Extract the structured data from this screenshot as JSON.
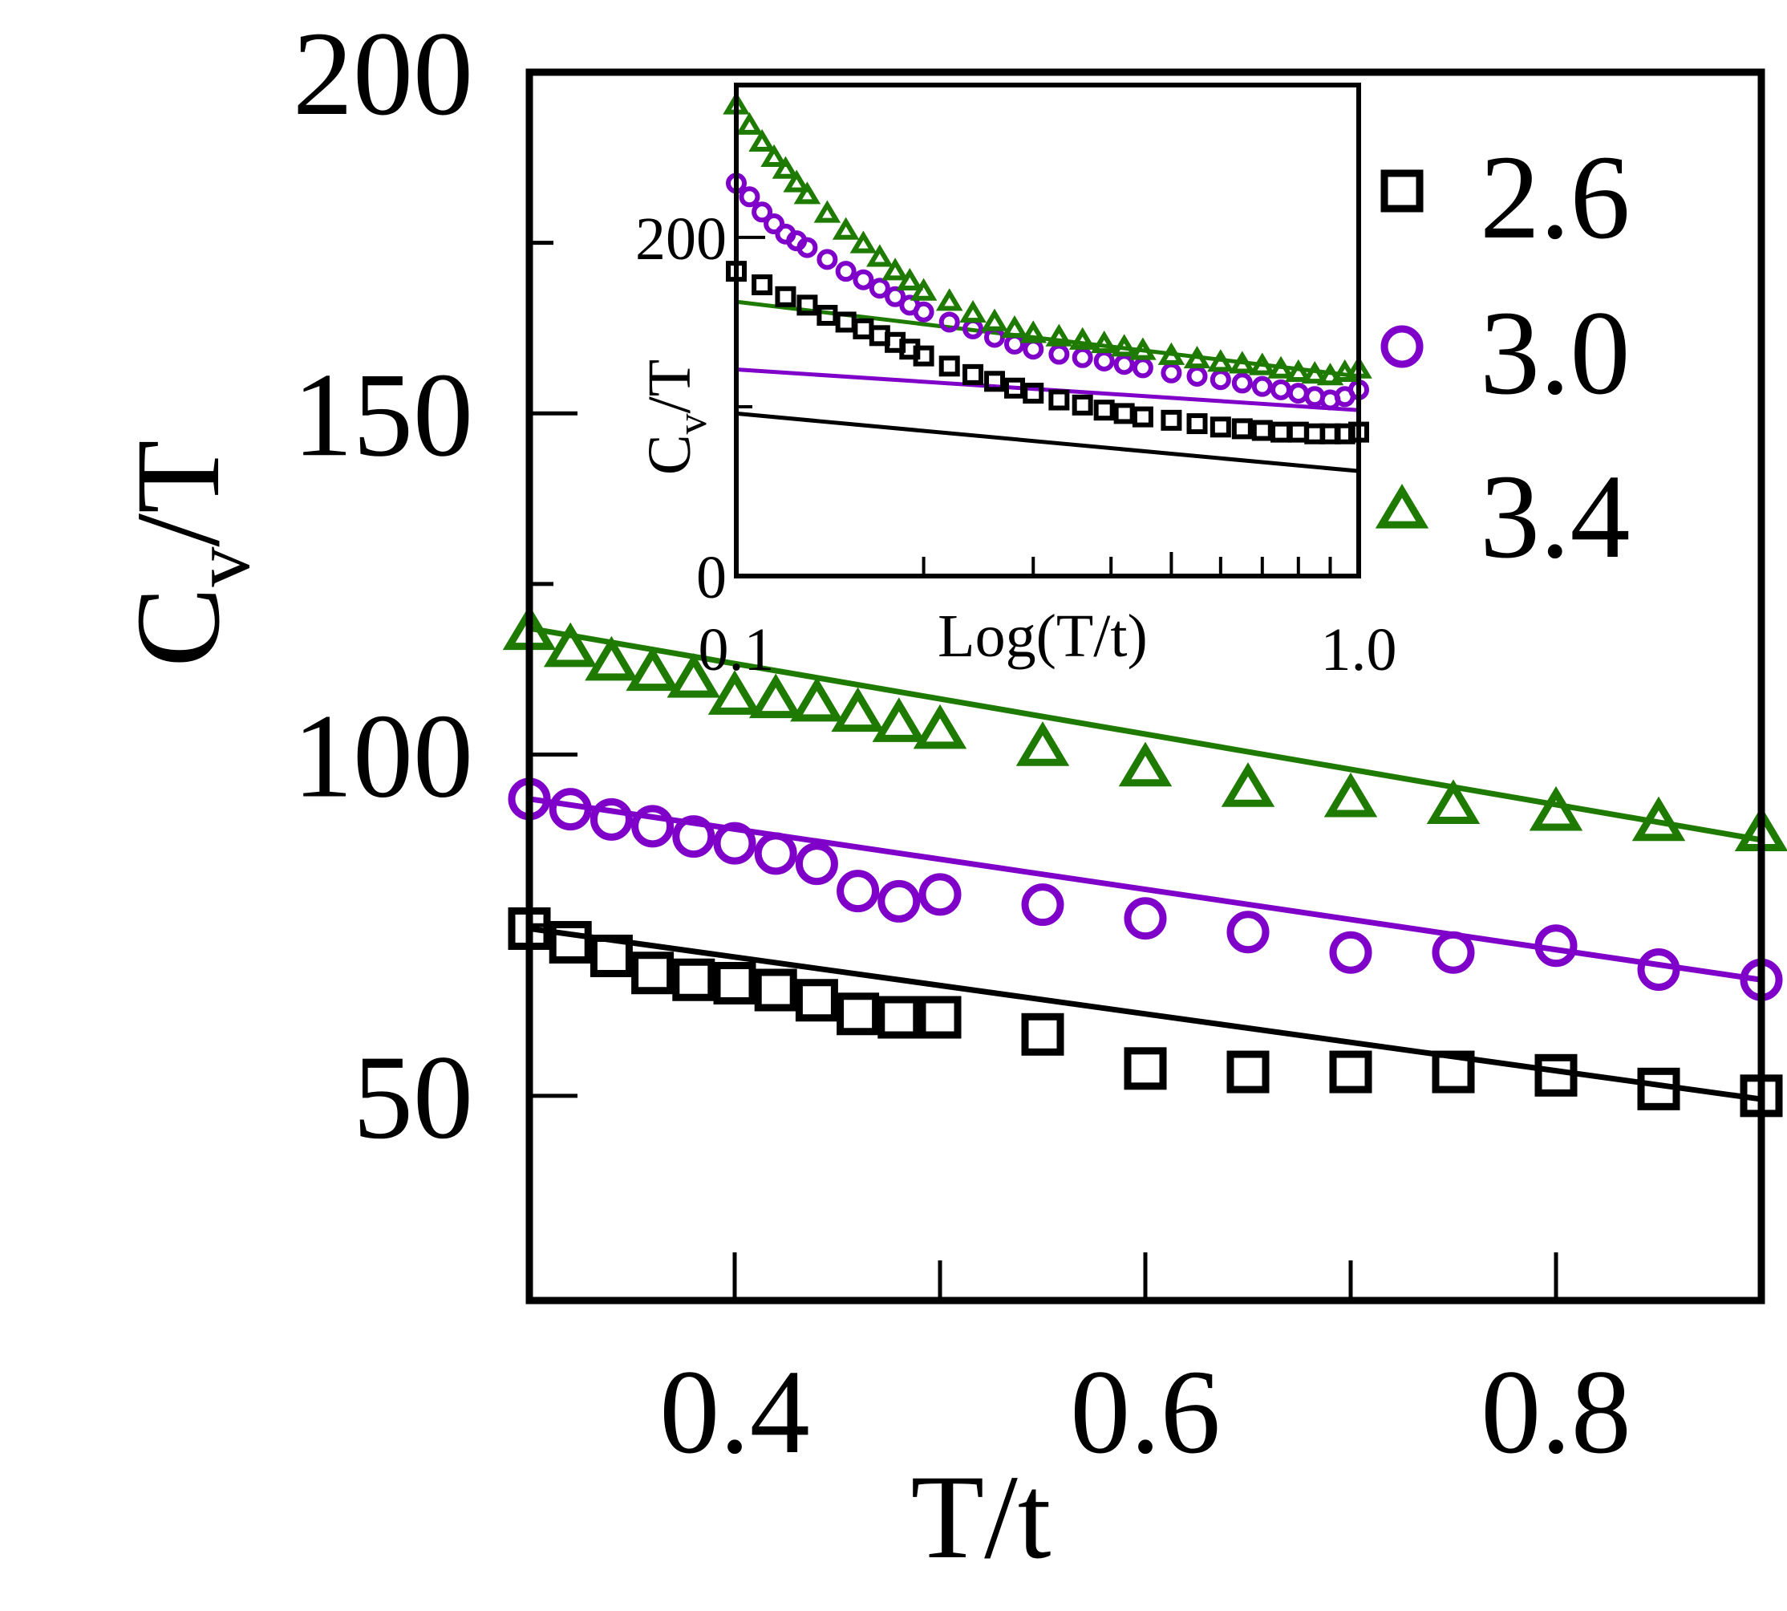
{
  "chart_data": [
    {
      "name": "main",
      "type": "scatter",
      "xlabel": "T/t",
      "ylabel": "C_v/T",
      "ylabel_base": "C",
      "ylabel_sub": "v",
      "ylabel_rest": "/T",
      "xlim": [
        0.3,
        0.9
      ],
      "ylim": [
        20,
        200
      ],
      "xticks": [
        0.4,
        0.6,
        0.8
      ],
      "xtick_labels": [
        "0.4",
        "0.6",
        "0.8"
      ],
      "x_minor_ticks": [
        0.5,
        0.7
      ],
      "yticks": [
        50,
        100,
        150,
        200
      ],
      "ytick_labels": [
        "50",
        "100",
        "150",
        "200"
      ],
      "y_minor_ticks": [
        75,
        125,
        175
      ],
      "legend": {
        "position": "top-right",
        "entries": [
          {
            "label": "2.6",
            "marker": "square"
          },
          {
            "label": "3.0",
            "marker": "circle"
          },
          {
            "label": "3.4",
            "marker": "triangle"
          }
        ]
      },
      "x": [
        0.3,
        0.32,
        0.34,
        0.36,
        0.38,
        0.4,
        0.42,
        0.44,
        0.46,
        0.48,
        0.5,
        0.55,
        0.6,
        0.65,
        0.7,
        0.75,
        0.8,
        0.85,
        0.9
      ],
      "series": [
        {
          "name": "2.6",
          "marker": "square",
          "color": "#000000",
          "values": [
            74.5,
            72.5,
            70.5,
            68.0,
            67.0,
            66.5,
            65.5,
            64.0,
            62.0,
            61.5,
            61.5,
            59.0,
            54.0,
            53.5,
            53.5,
            53.5,
            53.0,
            51.0,
            50.0
          ],
          "fit": [
            74.5,
            49.5
          ]
        },
        {
          "name": "3.0",
          "marker": "circle",
          "color": "#7F00C8",
          "values": [
            93.5,
            92.0,
            90.5,
            89.5,
            88.0,
            87.0,
            85.5,
            84.0,
            80.0,
            78.5,
            79.5,
            78.0,
            76.0,
            74.0,
            71.0,
            71.0,
            72.0,
            68.5,
            67.0
          ],
          "fit": [
            93.5,
            67.0
          ]
        },
        {
          "name": "3.4",
          "marker": "triangle",
          "color": "#1E7A00",
          "values": [
            118.0,
            115.5,
            113.5,
            112.0,
            111.0,
            108.5,
            108.0,
            107.5,
            106.0,
            104.5,
            103.5,
            101.0,
            98.0,
            95.0,
            93.5,
            92.5,
            91.5,
            90.0,
            88.5
          ],
          "fit": [
            118.5,
            87.5
          ]
        }
      ]
    },
    {
      "name": "inset",
      "type": "scatter",
      "xscale": "log",
      "xlabel": "Log(T/t)",
      "ylabel": "C_v/T",
      "ylabel_base": "C",
      "ylabel_sub": "v",
      "ylabel_rest": "/T",
      "xlim": [
        0.1,
        1.0
      ],
      "ylim": [
        0,
        290
      ],
      "xtick_labels": [
        "0.1",
        "1.0"
      ],
      "xticks": [
        0.1,
        1.0
      ],
      "x_minor_ticks": [
        0.2,
        0.3,
        0.4,
        0.5,
        0.6,
        0.7,
        0.8,
        0.9
      ],
      "yticks": [
        0,
        200
      ],
      "ytick_labels": [
        "0",
        "200"
      ],
      "y_minor_ticks": [
        100
      ],
      "series": [
        {
          "name": "2.6",
          "marker": "square",
          "color": "#000000",
          "x": [
            0.1,
            0.11,
            0.12,
            0.13,
            0.14,
            0.15,
            0.16,
            0.17,
            0.18,
            0.19,
            0.2,
            0.22,
            0.24,
            0.26,
            0.28,
            0.3,
            0.33,
            0.36,
            0.39,
            0.42,
            0.45,
            0.5,
            0.55,
            0.6,
            0.65,
            0.7,
            0.75,
            0.8,
            0.85,
            0.9,
            0.95,
            1.0
          ],
          "values": [
            180,
            172,
            165,
            160,
            154,
            150,
            146,
            142,
            138,
            134,
            130,
            124,
            119,
            115,
            111,
            108,
            104,
            101,
            98,
            96,
            94,
            92,
            90,
            88,
            87,
            86,
            85,
            85,
            84,
            84,
            84,
            85
          ],
          "fit": [
            [
              0.1,
              96
            ],
            [
              1.0,
              62
            ]
          ]
        },
        {
          "name": "3.0",
          "marker": "circle",
          "color": "#7F00C8",
          "x": [
            0.1,
            0.105,
            0.11,
            0.115,
            0.12,
            0.125,
            0.13,
            0.14,
            0.15,
            0.16,
            0.17,
            0.18,
            0.19,
            0.2,
            0.22,
            0.24,
            0.26,
            0.28,
            0.3,
            0.33,
            0.36,
            0.39,
            0.42,
            0.45,
            0.5,
            0.55,
            0.6,
            0.65,
            0.7,
            0.75,
            0.8,
            0.85,
            0.9,
            0.95,
            1.0
          ],
          "values": [
            232,
            224,
            215,
            208,
            202,
            198,
            194,
            187,
            180,
            175,
            170,
            165,
            160,
            156,
            150,
            146,
            141,
            137,
            134,
            131,
            129,
            127,
            125,
            123,
            120,
            118,
            116,
            114,
            112,
            110,
            108,
            106,
            104,
            106,
            110
          ],
          "fit": [
            [
              0.1,
              122
            ],
            [
              1.0,
              98
            ]
          ]
        },
        {
          "name": "3.4",
          "marker": "triangle",
          "color": "#1E7A00",
          "x": [
            0.1,
            0.105,
            0.11,
            0.115,
            0.12,
            0.125,
            0.13,
            0.14,
            0.15,
            0.16,
            0.17,
            0.18,
            0.19,
            0.2,
            0.22,
            0.24,
            0.26,
            0.28,
            0.3,
            0.33,
            0.36,
            0.39,
            0.42,
            0.45,
            0.5,
            0.55,
            0.6,
            0.65,
            0.7,
            0.75,
            0.8,
            0.85,
            0.9,
            0.95,
            1.0
          ],
          "values": [
            278,
            266,
            256,
            247,
            240,
            232,
            225,
            214,
            204,
            196,
            188,
            180,
            174,
            168,
            162,
            155,
            150,
            146,
            143,
            141,
            139,
            137,
            135,
            133,
            130,
            128,
            126,
            125,
            124,
            122,
            120,
            119,
            118,
            120,
            122
          ],
          "fit": [
            [
              0.1,
              162
            ],
            [
              1.0,
              118
            ]
          ]
        }
      ]
    }
  ]
}
